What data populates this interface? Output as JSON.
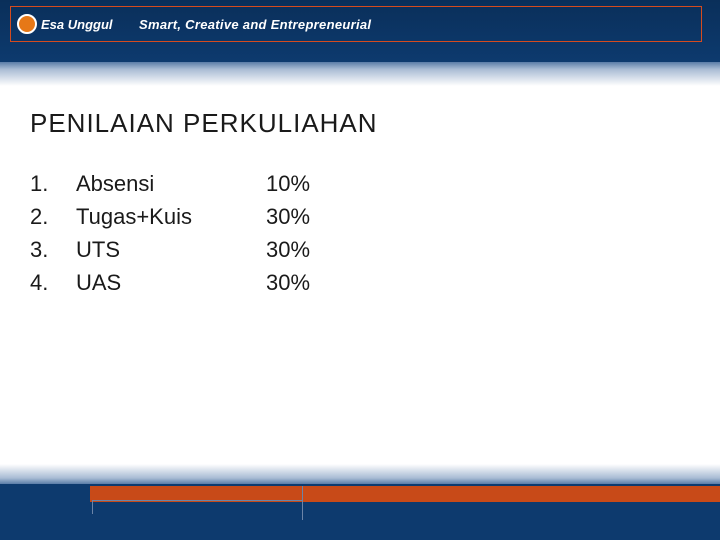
{
  "header": {
    "brand_name": "Esa Unggul",
    "tagline": "Smart, Creative and Entrepreneurial",
    "bg_color": "#0d3a6e",
    "accent_color": "#d54b1e",
    "logo_color": "#e67817"
  },
  "title": "PENILAIAN PERKULIAHAN",
  "grades": {
    "columns": [
      "no",
      "item",
      "percent"
    ],
    "rows": [
      {
        "no": "1.",
        "item": "Absensi",
        "percent": "10%"
      },
      {
        "no": "2.",
        "item": "Tugas+Kuis",
        "percent": "30%"
      },
      {
        "no": "3.",
        "item": "UTS",
        "percent": "30%"
      },
      {
        "no": "4.",
        "item": "UAS",
        "percent": "30%"
      }
    ],
    "font_size": 22,
    "text_color": "#1a1a1a"
  },
  "footer": {
    "bg_color": "#0d3a6e",
    "orange_bar_color": "#c84a18"
  }
}
